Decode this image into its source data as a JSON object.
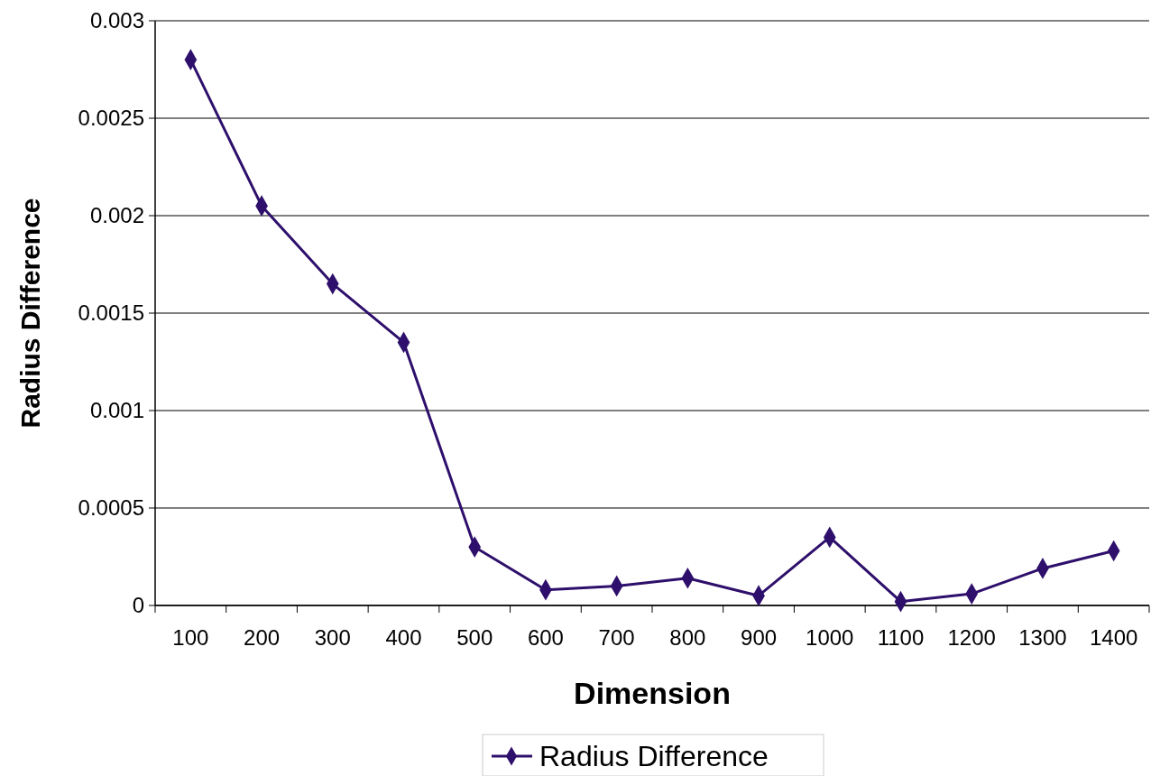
{
  "chart_data": {
    "type": "line",
    "xlabel": "Dimension",
    "ylabel": "Radius Difference",
    "categories": [
      "100",
      "200",
      "300",
      "400",
      "500",
      "600",
      "700",
      "800",
      "900",
      "1000",
      "1100",
      "1200",
      "1300",
      "1400"
    ],
    "series": [
      {
        "name": "Radius Difference",
        "color": "#2e0f6b",
        "values": [
          0.0028,
          0.00205,
          0.00165,
          0.00135,
          0.0003,
          8e-05,
          0.0001,
          0.00014,
          5e-05,
          0.00035,
          2e-05,
          6e-05,
          0.00019,
          0.00028
        ]
      }
    ],
    "ylim": [
      0,
      0.003
    ],
    "yticks": [
      0,
      0.0005,
      0.001,
      0.0015,
      0.002,
      0.0025,
      0.003
    ],
    "grid": "y",
    "legend": "bottom",
    "marker": "diamond",
    "line_style": "solid"
  }
}
